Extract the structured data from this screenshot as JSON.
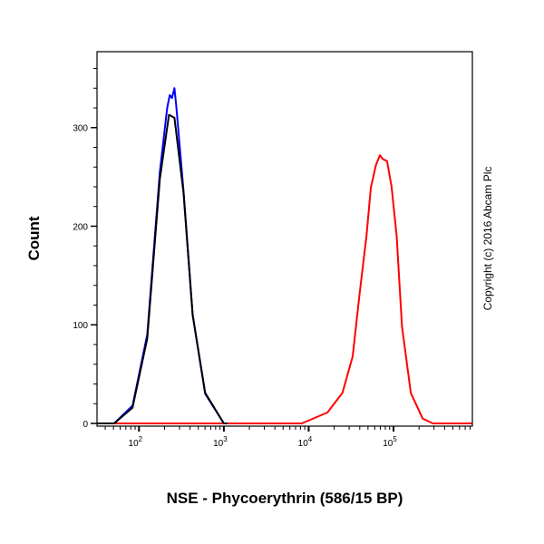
{
  "chart_data": {
    "type": "line",
    "xlabel": "NSE - Phycoerythrin (586/15 BP)",
    "ylabel": "Count",
    "xscale": "log",
    "xlim": [
      32,
      850000
    ],
    "ylim": [
      0,
      377
    ],
    "x_ticks": [
      {
        "value": 100,
        "base": "10",
        "exp": "2"
      },
      {
        "value": 1000,
        "base": "10",
        "exp": "3"
      },
      {
        "value": 10000,
        "base": "10",
        "exp": "4"
      },
      {
        "value": 100000,
        "base": "10",
        "exp": "5"
      }
    ],
    "y_ticks": [
      0,
      100,
      200,
      300
    ],
    "grid": false,
    "annotation": "Copyright (c) 2016 Abcam Plc",
    "series": [
      {
        "color": "#ff0000",
        "points": [
          [
            32,
            0
          ],
          [
            8300,
            0
          ],
          [
            16600,
            11
          ],
          [
            25000,
            31
          ],
          [
            33000,
            68
          ],
          [
            39500,
            129
          ],
          [
            48000,
            190
          ],
          [
            54000,
            239
          ],
          [
            62000,
            262
          ],
          [
            69000,
            272
          ],
          [
            75000,
            268
          ],
          [
            84000,
            266
          ],
          [
            95000,
            240
          ],
          [
            109000,
            190
          ],
          [
            126000,
            98
          ],
          [
            160000,
            31
          ],
          [
            220000,
            5
          ],
          [
            290000,
            0
          ],
          [
            850000,
            0
          ]
        ]
      },
      {
        "color": "#0000ff",
        "points": [
          [
            32,
            0
          ],
          [
            51,
            0
          ],
          [
            84,
            18
          ],
          [
            125,
            90
          ],
          [
            176,
            255
          ],
          [
            215,
            320
          ],
          [
            230,
            333
          ],
          [
            245,
            330
          ],
          [
            262,
            340
          ],
          [
            275,
            322
          ],
          [
            335,
            236
          ],
          [
            429,
            110
          ],
          [
            603,
            30
          ],
          [
            1000,
            0
          ],
          [
            1100,
            0
          ]
        ]
      },
      {
        "color": "#000000",
        "points": [
          [
            32,
            0
          ],
          [
            51,
            0
          ],
          [
            84,
            16
          ],
          [
            125,
            86
          ],
          [
            176,
            248
          ],
          [
            226,
            313
          ],
          [
            262,
            310
          ],
          [
            335,
            234
          ],
          [
            429,
            110
          ],
          [
            603,
            31
          ],
          [
            1000,
            0
          ],
          [
            1100,
            0
          ]
        ]
      }
    ]
  }
}
